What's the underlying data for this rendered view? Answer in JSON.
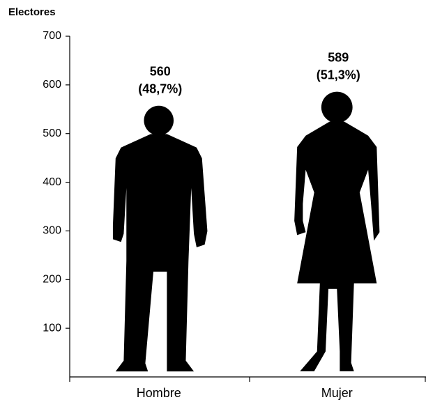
{
  "chart_data": {
    "type": "pictograph",
    "y_label": "Electores",
    "categories": [
      "Hombre",
      "Mujer"
    ],
    "values": [
      560,
      589
    ],
    "percents": [
      48.7,
      51.3
    ],
    "percent_labels": [
      "(48,7%)",
      "(51,3%)"
    ],
    "color": "#000000",
    "ylim": [
      0,
      700
    ],
    "yticks": [
      100,
      200,
      300,
      400,
      500,
      600,
      700
    ]
  }
}
